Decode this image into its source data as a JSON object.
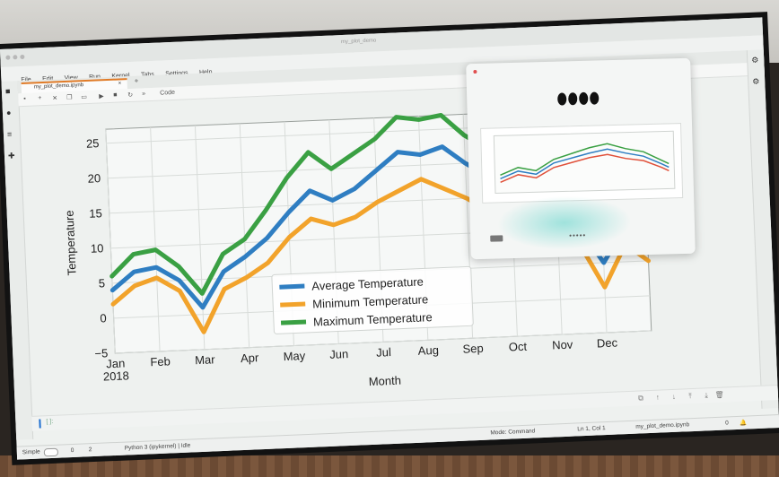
{
  "app": {
    "window_title": "my_plot_demo",
    "menu": [
      "File",
      "Edit",
      "View",
      "Run",
      "Kernel",
      "Tabs",
      "Settings",
      "Help"
    ],
    "tab_label": "my_plot_demo.ipynb",
    "cell_type": "Code"
  },
  "status": {
    "mode_label": "Simple",
    "counts_a": "0",
    "counts_b": "2",
    "kernel": "Python 3 (ipykernel) | Idle",
    "mode": "Mode: Command",
    "position": "Ln 1, Col 1",
    "file": "my_plot_demo.ipynb",
    "notifications": "0"
  },
  "popup": {
    "dots": "•••••"
  },
  "colors": {
    "average": "#2f7ec2",
    "minimum": "#f2a32b",
    "maximum": "#3aa043"
  },
  "chart_data": {
    "type": "line",
    "xlabel": "Month",
    "ylabel": "Temperature",
    "ylim": [
      -5,
      27
    ],
    "xlim": [
      "2018-01-01",
      "2018-12-31"
    ],
    "yticks": [
      "−5",
      "0",
      "5",
      "10",
      "15",
      "20",
      "25"
    ],
    "xticks": [
      "Jan\n2018",
      "Feb",
      "Mar",
      "Apr",
      "May",
      "Jun",
      "Jul",
      "Aug",
      "Sep",
      "Oct",
      "Nov",
      "Dec"
    ],
    "grid": true,
    "legend_position": "lower-center",
    "x": [
      "Jan 1",
      "Jan 15",
      "Feb 1",
      "Feb 15",
      "Mar 1",
      "Mar 15",
      "Apr 1",
      "Apr 15",
      "May 1",
      "May 15",
      "Jun 1",
      "Jun 15",
      "Jul 1",
      "Jul 15",
      "Aug 1",
      "Aug 15",
      "Sep 1",
      "Sep 15",
      "Oct 1",
      "Oct 15",
      "Nov 1",
      "Nov 15",
      "Dec 1",
      "Dec 15",
      "Dec 31"
    ],
    "series": [
      {
        "name": "Average Temperature",
        "color": "#2f7ec2",
        "values": [
          4,
          6.5,
          7,
          5,
          1,
          6,
          8,
          10.5,
          14,
          17,
          15.5,
          17,
          19.5,
          22,
          21.5,
          22.5,
          20,
          18,
          13,
          11.5,
          12.5,
          10,
          5,
          10,
          7
        ]
      },
      {
        "name": "Minimum Temperature",
        "color": "#f2a32b",
        "values": [
          2,
          4.5,
          5.5,
          3.5,
          -2.5,
          3.5,
          5,
          7,
          10.5,
          13,
          12,
          13,
          15,
          16.5,
          18,
          16.5,
          15,
          13,
          9,
          9,
          9,
          7.5,
          1.5,
          7.5,
          5
        ]
      },
      {
        "name": "Maximum Temperature",
        "color": "#3aa043",
        "values": [
          6,
          9,
          9.5,
          7,
          3,
          8.5,
          10.5,
          14.5,
          19,
          22.5,
          20,
          22,
          24,
          27,
          26.5,
          27,
          24,
          22,
          17,
          14,
          15,
          14,
          9,
          12.5,
          9
        ]
      }
    ]
  }
}
